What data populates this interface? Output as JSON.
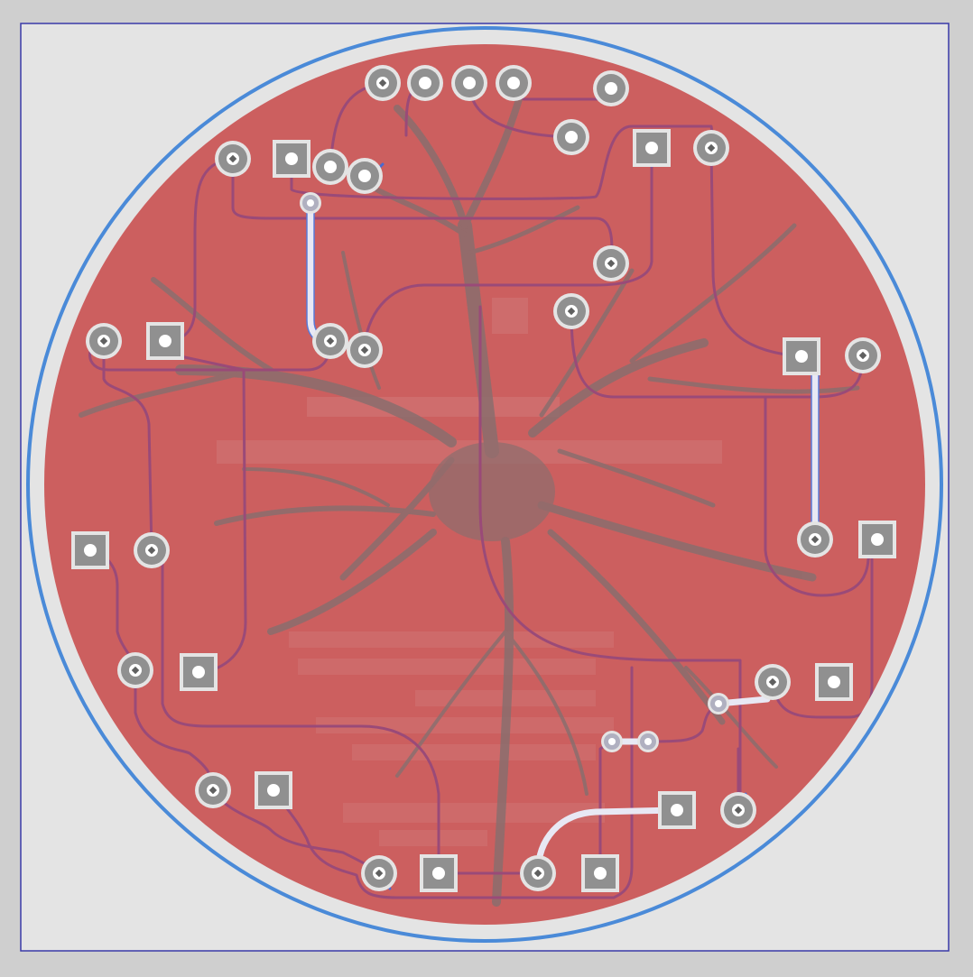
{
  "colors": {
    "outer_background": "#cfcfcf",
    "canvas_background": "#e4e4e4",
    "canvas_border": "#3a3aa8",
    "board_edge": "#4a8ad8",
    "copper_fill": "#cc5f5f",
    "silkscreen": "#8a6e6e",
    "trace": "#9a4a78",
    "trace_top": "#4a6ad0",
    "pad": "#b8b8b8",
    "pad_ring": "#909090",
    "drill": "#ffffff",
    "ghost_text": "#d58888"
  },
  "board": {
    "layer_fill": "copper-pour",
    "artwork": "neuron-silkscreen"
  }
}
